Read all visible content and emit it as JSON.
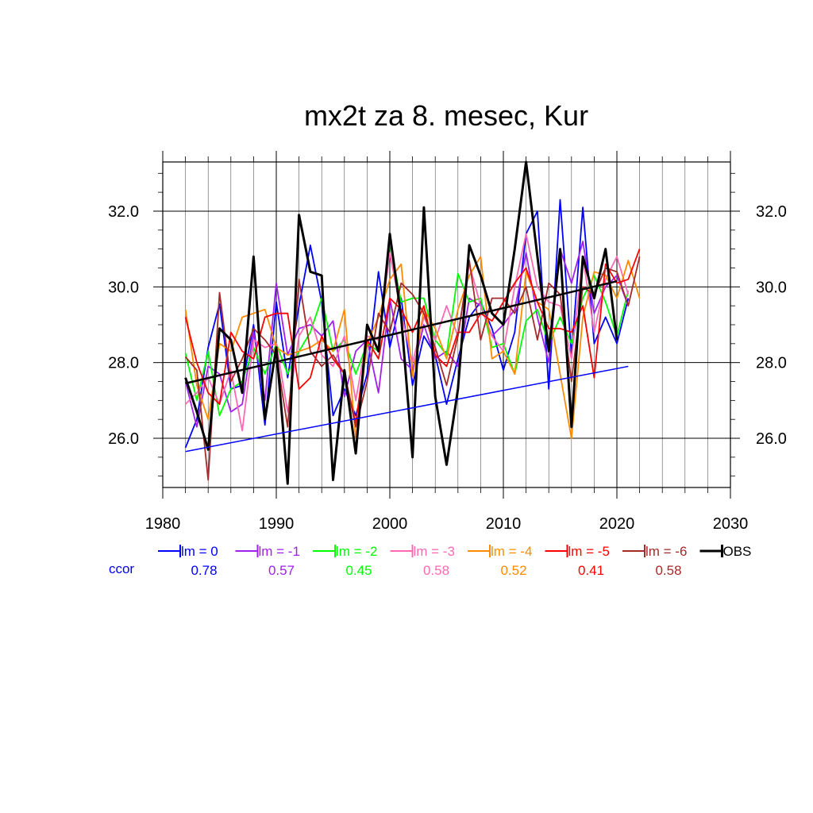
{
  "chart_data": {
    "type": "line",
    "title": "mx2t za 8. mesec, Kur",
    "xlabel": "",
    "ylabel": "",
    "xlim": [
      1980,
      2030
    ],
    "ylim": [
      24.7,
      33.3
    ],
    "x_ticks": [
      "1980",
      "1990",
      "2000",
      "2010",
      "2020",
      "2030"
    ],
    "y_ticks": [
      "26.0",
      "28.0",
      "30.0",
      "32.0"
    ],
    "grid": true,
    "legend_position": "bottom",
    "ccor_label": "ccor",
    "x": [
      1982,
      1983,
      1984,
      1985,
      1986,
      1987,
      1988,
      1989,
      1990,
      1991,
      1992,
      1993,
      1994,
      1995,
      1996,
      1997,
      1998,
      1999,
      2000,
      2001,
      2002,
      2003,
      2004,
      2005,
      2006,
      2007,
      2008,
      2009,
      2010,
      2011,
      2012,
      2013,
      2014,
      2015,
      2016,
      2017,
      2018,
      2019,
      2020,
      2021,
      2022
    ],
    "series": [
      {
        "name": "lm = 0",
        "color": "#0000ff",
        "ccor": "0.78",
        "values": [
          25.75,
          26.5,
          28.4,
          29.55,
          27.3,
          27.4,
          29.0,
          26.35,
          29.6,
          27.6,
          29.5,
          31.1,
          29.6,
          26.6,
          27.3,
          26.6,
          27.7,
          30.4,
          28.4,
          29.7,
          27.4,
          28.7,
          28.2,
          26.9,
          28.1,
          29.2,
          29.6,
          28.9,
          27.8,
          28.8,
          31.4,
          32.0,
          27.3,
          32.3,
          28.2,
          32.1,
          28.5,
          29.2,
          28.5,
          29.7,
          null
        ],
        "trend": [
          25.65,
          27.9
        ]
      },
      {
        "name": "lm = -1",
        "color": "#a020f0",
        "ccor": "0.57",
        "values": [
          27.5,
          26.3,
          27.9,
          27.7,
          26.7,
          26.9,
          28.8,
          27.0,
          30.1,
          28.2,
          28.9,
          29.0,
          28.7,
          29.1,
          27.1,
          28.3,
          28.6,
          27.2,
          29.7,
          28.1,
          27.8,
          29.0,
          28.1,
          28.3,
          27.9,
          29.7,
          29.5,
          28.7,
          29.0,
          29.4,
          30.9,
          29.2,
          28.0,
          31.0,
          30.1,
          31.2,
          29.3,
          30.0,
          30.3,
          29.5,
          null
        ]
      },
      {
        "name": "lm = -2",
        "color": "#00ff00",
        "ccor": "0.45",
        "values": [
          28.25,
          27.0,
          28.3,
          26.6,
          27.3,
          27.5,
          28.4,
          27.7,
          28.5,
          27.7,
          28.3,
          28.8,
          29.7,
          28.3,
          28.6,
          27.7,
          28.5,
          28.3,
          31.2,
          29.6,
          29.7,
          29.7,
          28.6,
          28.2,
          30.35,
          29.6,
          29.7,
          28.4,
          28.5,
          27.7,
          29.1,
          29.4,
          28.5,
          29.2,
          28.5,
          29.7,
          30.3,
          29.6,
          28.7,
          29.9,
          null
        ]
      },
      {
        "name": "lm = -3",
        "color": "#ff69b4",
        "ccor": "0.58",
        "values": [
          26.9,
          27.2,
          27.6,
          26.9,
          27.8,
          26.2,
          28.6,
          28.4,
          28.5,
          26.7,
          28.7,
          29.2,
          28.2,
          27.9,
          28.7,
          27.0,
          28.7,
          28.6,
          30.9,
          29.3,
          28.0,
          29.2,
          28.6,
          29.5,
          28.7,
          30.6,
          29.5,
          28.7,
          28.3,
          30.0,
          31.4,
          30.0,
          29.6,
          29.5,
          28.1,
          30.8,
          28.8,
          30.2,
          30.8,
          29.8,
          null
        ]
      },
      {
        "name": "lm = -4",
        "color": "#ff8c00",
        "ccor": "0.52",
        "values": [
          29.4,
          27.4,
          26.5,
          28.5,
          28.3,
          29.2,
          29.3,
          29.4,
          28.4,
          28.2,
          28.3,
          28.4,
          28.6,
          28.3,
          29.4,
          26.0,
          28.5,
          29.2,
          30.2,
          30.6,
          27.6,
          29.4,
          28.9,
          28.1,
          29.4,
          30.3,
          30.8,
          28.1,
          28.3,
          27.7,
          30.4,
          29.6,
          29.4,
          27.7,
          26.0,
          29.2,
          30.4,
          30.3,
          29.7,
          30.7,
          29.7
        ]
      },
      {
        "name": "lm = -5",
        "color": "#ff0000",
        "ccor": "0.41",
        "values": [
          29.2,
          28.0,
          27.2,
          26.9,
          28.8,
          28.3,
          28.1,
          29.2,
          29.3,
          29.3,
          27.3,
          27.6,
          28.7,
          28.1,
          27.7,
          26.4,
          28.6,
          28.1,
          29.7,
          29.4,
          28.8,
          29.5,
          28.2,
          27.9,
          28.8,
          28.8,
          29.3,
          29.1,
          29.6,
          30.1,
          30.5,
          29.6,
          28.9,
          28.9,
          28.8,
          29.5,
          27.6,
          30.6,
          30.1,
          30.2,
          31.0
        ]
      },
      {
        "name": "lm = -6",
        "color": "#a52a2a",
        "ccor": "0.58",
        "values": [
          28.15,
          27.8,
          24.9,
          29.85,
          27.5,
          28.1,
          28.9,
          28.6,
          28.2,
          26.3,
          30.2,
          28.3,
          27.9,
          28.2,
          27.7,
          26.3,
          27.5,
          29.3,
          28.8,
          30.1,
          29.8,
          29.3,
          28.4,
          27.4,
          28.7,
          30.7,
          28.6,
          29.7,
          29.7,
          29.3,
          30.0,
          28.6,
          30.1,
          29.8,
          27.5,
          30.0,
          29.8,
          30.5,
          30.4,
          29.5,
          30.8
        ]
      },
      {
        "name": "OBS",
        "color": "#000000",
        "ccor": "",
        "values": [
          27.6,
          26.7,
          25.7,
          28.9,
          28.6,
          27.2,
          30.8,
          26.5,
          28.4,
          24.8,
          31.9,
          30.4,
          30.3,
          24.9,
          27.8,
          25.6,
          29.0,
          28.3,
          31.4,
          29.2,
          25.5,
          32.1,
          27.1,
          25.3,
          27.3,
          31.1,
          30.3,
          29.3,
          29.0,
          31.0,
          33.3,
          30.8,
          28.3,
          31.0,
          26.3,
          30.8,
          29.7,
          31.0,
          28.6,
          null,
          null
        ],
        "trend": [
          27.45,
          30.15
        ]
      }
    ]
  }
}
